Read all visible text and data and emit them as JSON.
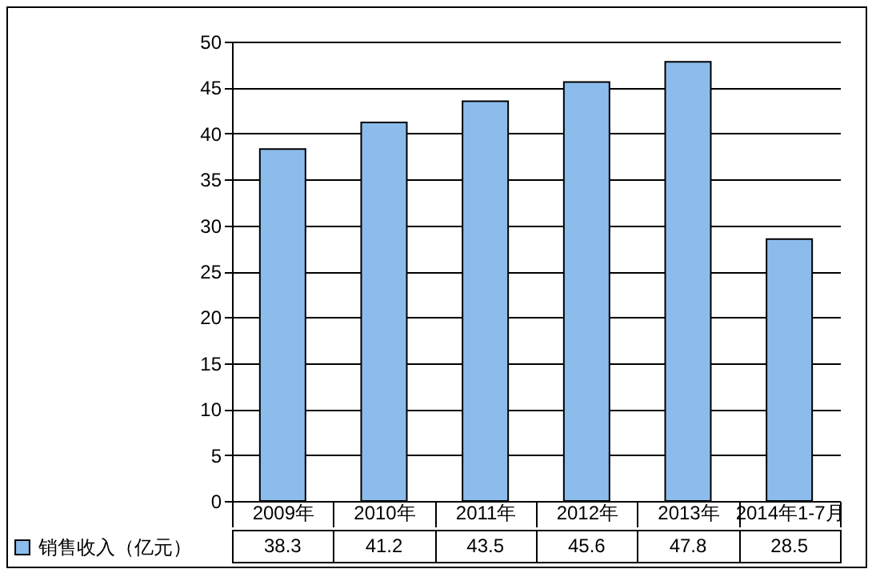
{
  "chart_data": {
    "type": "bar",
    "categories": [
      "2009年",
      "2010年",
      "2011年",
      "2012年",
      "2013年",
      "2014年1-7月"
    ],
    "series": [
      {
        "name": "销售收入（亿元）",
        "color": "#8cbcec",
        "values": [
          38.3,
          41.2,
          43.5,
          45.6,
          47.8,
          28.5
        ]
      }
    ],
    "ylim": [
      0,
      50
    ],
    "yticks": [
      0,
      5,
      10,
      15,
      20,
      25,
      30,
      35,
      40,
      45,
      50
    ],
    "grid": "y",
    "legend": "bottom left",
    "data_labels": true
  }
}
